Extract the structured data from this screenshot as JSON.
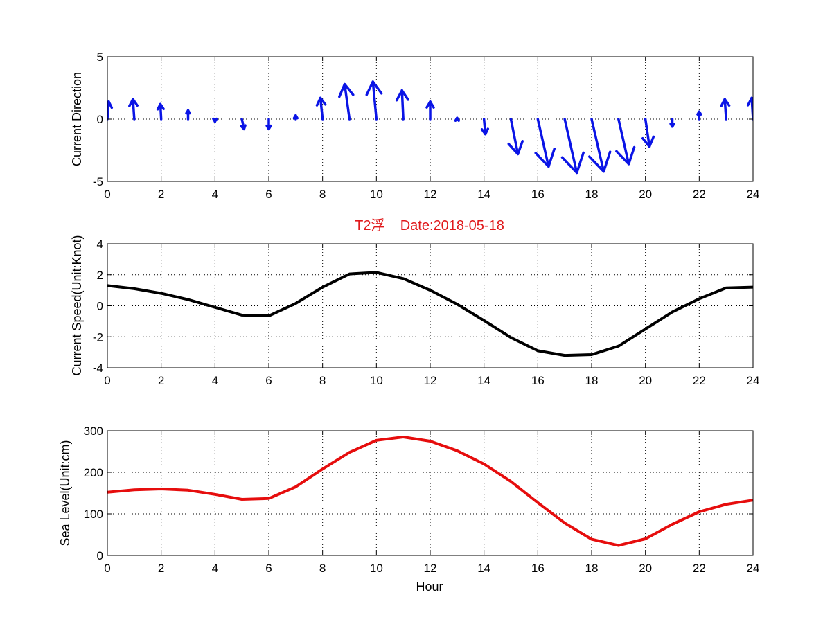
{
  "chart_data": [
    {
      "type": "quiver",
      "title": "",
      "xlabel": "",
      "ylabel": "Current Direction",
      "xlim": [
        0,
        24
      ],
      "ylim": [
        -5,
        5
      ],
      "xticks": [
        0,
        2,
        4,
        6,
        8,
        10,
        12,
        14,
        16,
        18,
        20,
        22,
        24
      ],
      "yticks": [
        -5,
        0,
        5
      ],
      "grid": true,
      "color": "#0a14e6",
      "x": [
        0,
        1,
        2,
        3,
        4,
        5,
        6,
        7,
        8,
        9,
        10,
        11,
        12,
        13,
        14,
        15,
        16,
        17,
        18,
        19,
        20,
        21,
        22,
        23,
        24
      ],
      "u": [
        0.05,
        -0.05,
        -0.03,
        0.0,
        0.0,
        0.08,
        0.0,
        0.0,
        -0.08,
        -0.18,
        -0.13,
        -0.05,
        0.0,
        0.0,
        0.05,
        0.26,
        0.4,
        0.45,
        0.45,
        0.38,
        0.15,
        0.0,
        0.0,
        -0.05,
        -0.05
      ],
      "v": [
        1.4,
        1.6,
        1.2,
        0.7,
        -0.2,
        -0.8,
        -0.8,
        0.3,
        1.7,
        2.8,
        3.0,
        2.3,
        1.4,
        0.1,
        -1.2,
        -2.8,
        -3.8,
        -4.3,
        -4.2,
        -3.6,
        -2.2,
        -0.6,
        0.6,
        1.6,
        1.7
      ]
    },
    {
      "type": "line",
      "title": "T2浮    Date:2018-05-18",
      "xlabel": "",
      "ylabel": "Current Speed(Unit:Knot)",
      "xlim": [
        0,
        24
      ],
      "ylim": [
        -4,
        4
      ],
      "xticks": [
        0,
        2,
        4,
        6,
        8,
        10,
        12,
        14,
        16,
        18,
        20,
        22,
        24
      ],
      "yticks": [
        -4,
        -2,
        0,
        2,
        4
      ],
      "grid": true,
      "color": "#000000",
      "x": [
        0,
        1,
        2,
        3,
        4,
        5,
        6,
        7,
        8,
        9,
        10,
        11,
        12,
        13,
        14,
        15,
        16,
        17,
        18,
        19,
        20,
        21,
        22,
        23,
        24
      ],
      "y": [
        1.3,
        1.1,
        0.8,
        0.4,
        -0.1,
        -0.6,
        -0.65,
        0.15,
        1.2,
        2.05,
        2.15,
        1.75,
        1.0,
        0.1,
        -0.95,
        -2.05,
        -2.9,
        -3.2,
        -3.15,
        -2.6,
        -1.5,
        -0.4,
        0.45,
        1.15,
        1.2
      ]
    },
    {
      "type": "line",
      "title": "",
      "xlabel": "Hour",
      "ylabel": "Sea Level(Unit:cm)",
      "xlim": [
        0,
        24
      ],
      "ylim": [
        0,
        300
      ],
      "xticks": [
        0,
        2,
        4,
        6,
        8,
        10,
        12,
        14,
        16,
        18,
        20,
        22,
        24
      ],
      "yticks": [
        0,
        100,
        200,
        300
      ],
      "grid": true,
      "color": "#e60d0d",
      "x": [
        0,
        1,
        2,
        3,
        4,
        5,
        6,
        7,
        8,
        9,
        10,
        11,
        12,
        13,
        14,
        15,
        16,
        17,
        18,
        19,
        20,
        21,
        22,
        23,
        24
      ],
      "y": [
        152,
        158,
        160,
        157,
        147,
        135,
        137,
        165,
        208,
        248,
        277,
        285,
        275,
        252,
        220,
        178,
        127,
        78,
        39,
        24,
        40,
        75,
        105,
        123,
        133
      ]
    }
  ]
}
